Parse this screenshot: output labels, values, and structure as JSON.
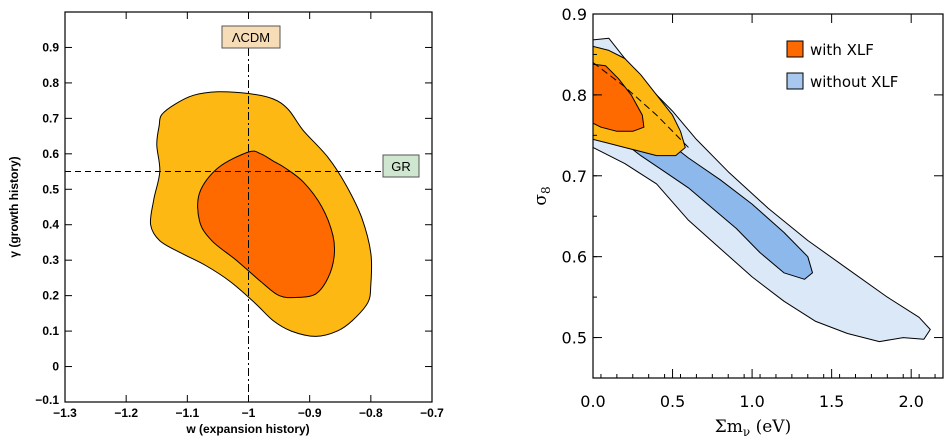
{
  "chart_data": [
    {
      "type": "contour",
      "xlabel": "w (expansion history)",
      "ylabel": "γ (growth history)",
      "xlim": [
        -1.3,
        -0.7
      ],
      "ylim": [
        -0.1,
        1.0
      ],
      "xticks": [
        "−1.3",
        "−1.2",
        "−1.1",
        "−1",
        "−0.9",
        "−0.8",
        "−0.7"
      ],
      "yticks": [
        "−0.1",
        "0",
        "0.1",
        "0.2",
        "0.3",
        "0.4",
        "0.5",
        "0.6",
        "0.7",
        "0.8",
        "0.9"
      ],
      "reference_lines": [
        {
          "label": "ΛCDM",
          "axis": "x",
          "value": -1.0,
          "style": "dash-dot"
        },
        {
          "label": "GR",
          "axis": "y",
          "value": 0.55,
          "style": "dashed"
        }
      ],
      "regions": [
        {
          "level": "outer",
          "color": "#fdb813",
          "points": [
            [
              -1.142,
              0.71
            ],
            [
              -1.12,
              0.74
            ],
            [
              -1.09,
              0.765
            ],
            [
              -1.05,
              0.775
            ],
            [
              -1.0,
              0.77
            ],
            [
              -0.96,
              0.755
            ],
            [
              -0.935,
              0.725
            ],
            [
              -0.91,
              0.665
            ],
            [
              -0.87,
              0.59
            ],
            [
              -0.84,
              0.51
            ],
            [
              -0.815,
              0.42
            ],
            [
              -0.8,
              0.32
            ],
            [
              -0.8,
              0.23
            ],
            [
              -0.805,
              0.18
            ],
            [
              -0.83,
              0.13
            ],
            [
              -0.855,
              0.1
            ],
            [
              -0.89,
              0.085
            ],
            [
              -0.93,
              0.1
            ],
            [
              -0.96,
              0.13
            ],
            [
              -0.99,
              0.18
            ],
            [
              -1.03,
              0.24
            ],
            [
              -1.07,
              0.285
            ],
            [
              -1.11,
              0.32
            ],
            [
              -1.145,
              0.355
            ],
            [
              -1.16,
              0.4
            ],
            [
              -1.155,
              0.47
            ],
            [
              -1.145,
              0.55
            ],
            [
              -1.15,
              0.625
            ],
            [
              -1.146,
              0.68
            ],
            [
              -1.142,
              0.71
            ]
          ]
        },
        {
          "level": "inner",
          "color": "#ff6a00",
          "points": [
            [
              -1.05,
              0.56
            ],
            [
              -1.0,
              0.605
            ],
            [
              -0.98,
              0.6
            ],
            [
              -0.96,
              0.58
            ],
            [
              -0.94,
              0.56
            ],
            [
              -0.91,
              0.52
            ],
            [
              -0.88,
              0.45
            ],
            [
              -0.862,
              0.37
            ],
            [
              -0.86,
              0.31
            ],
            [
              -0.87,
              0.25
            ],
            [
              -0.89,
              0.205
            ],
            [
              -0.92,
              0.195
            ],
            [
              -0.95,
              0.2
            ],
            [
              -0.98,
              0.24
            ],
            [
              -1.02,
              0.3
            ],
            [
              -1.06,
              0.355
            ],
            [
              -1.08,
              0.41
            ],
            [
              -1.08,
              0.49
            ],
            [
              -1.05,
              0.56
            ]
          ]
        }
      ]
    },
    {
      "type": "contour",
      "xlabel": "Σm",
      "xlabel_sub": "ν",
      "xlabel_unit": " (eV)",
      "ylabel": "σ",
      "ylabel_sub": "8",
      "xlim": [
        0.0,
        2.2
      ],
      "ylim": [
        0.45,
        0.9
      ],
      "xticks": [
        "0.0",
        "0.5",
        "1.0",
        "1.5",
        "2.0"
      ],
      "yticks": [
        "0.5",
        "0.6",
        "0.7",
        "0.8",
        "0.9"
      ],
      "legend": {
        "position": "top-right",
        "items": [
          {
            "label": "with XLF",
            "color": "#ff6a00"
          },
          {
            "label": "without XLF",
            "color": "#a8c8f0"
          }
        ]
      },
      "regions": [
        {
          "level": "outer",
          "series": "without XLF",
          "color": "#dbe8f7",
          "points": [
            [
              0.0,
              0.868
            ],
            [
              0.1,
              0.87
            ],
            [
              0.18,
              0.85
            ],
            [
              0.3,
              0.82
            ],
            [
              0.5,
              0.78
            ],
            [
              0.65,
              0.745
            ],
            [
              0.85,
              0.705
            ],
            [
              1.1,
              0.66
            ],
            [
              1.35,
              0.62
            ],
            [
              1.6,
              0.585
            ],
            [
              1.85,
              0.55
            ],
            [
              2.05,
              0.525
            ],
            [
              2.12,
              0.51
            ],
            [
              2.08,
              0.498
            ],
            [
              1.95,
              0.5
            ],
            [
              1.8,
              0.495
            ],
            [
              1.6,
              0.505
            ],
            [
              1.4,
              0.52
            ],
            [
              1.2,
              0.545
            ],
            [
              1.0,
              0.575
            ],
            [
              0.8,
              0.61
            ],
            [
              0.6,
              0.645
            ],
            [
              0.4,
              0.69
            ],
            [
              0.2,
              0.715
            ],
            [
              0.0,
              0.735
            ]
          ]
        },
        {
          "level": "inner",
          "series": "without XLF",
          "color": "#8db8ec",
          "points": [
            [
              0.18,
              0.768
            ],
            [
              0.3,
              0.76
            ],
            [
              0.45,
              0.745
            ],
            [
              0.6,
              0.722
            ],
            [
              0.8,
              0.695
            ],
            [
              1.0,
              0.665
            ],
            [
              1.2,
              0.63
            ],
            [
              1.35,
              0.6
            ],
            [
              1.38,
              0.58
            ],
            [
              1.33,
              0.572
            ],
            [
              1.2,
              0.58
            ],
            [
              1.05,
              0.605
            ],
            [
              0.9,
              0.635
            ],
            [
              0.75,
              0.66
            ],
            [
              0.6,
              0.685
            ],
            [
              0.45,
              0.705
            ],
            [
              0.3,
              0.725
            ],
            [
              0.2,
              0.74
            ],
            [
              0.18,
              0.768
            ]
          ]
        },
        {
          "level": "outer",
          "series": "with XLF",
          "color": "#fdb813",
          "points": [
            [
              0.0,
              0.86
            ],
            [
              0.1,
              0.855
            ],
            [
              0.2,
              0.845
            ],
            [
              0.3,
              0.825
            ],
            [
              0.4,
              0.8
            ],
            [
              0.5,
              0.775
            ],
            [
              0.55,
              0.755
            ],
            [
              0.58,
              0.735
            ],
            [
              0.52,
              0.725
            ],
            [
              0.4,
              0.725
            ],
            [
              0.3,
              0.73
            ],
            [
              0.2,
              0.735
            ],
            [
              0.1,
              0.74
            ],
            [
              0.0,
              0.745
            ]
          ]
        },
        {
          "level": "inner",
          "series": "with XLF",
          "color": "#ff6a00",
          "points": [
            [
              0.0,
              0.838
            ],
            [
              0.08,
              0.836
            ],
            [
              0.16,
              0.82
            ],
            [
              0.24,
              0.8
            ],
            [
              0.31,
              0.775
            ],
            [
              0.32,
              0.76
            ],
            [
              0.25,
              0.755
            ],
            [
              0.15,
              0.755
            ],
            [
              0.05,
              0.76
            ],
            [
              0.0,
              0.765
            ]
          ]
        }
      ],
      "reference_curve": {
        "style": "dashed",
        "points": [
          [
            0.0,
            0.84
          ],
          [
            0.2,
            0.81
          ],
          [
            0.4,
            0.775
          ],
          [
            0.6,
            0.735
          ]
        ]
      }
    }
  ]
}
